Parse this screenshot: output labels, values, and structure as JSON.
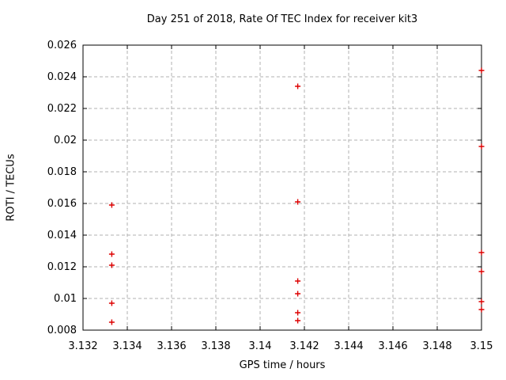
{
  "chart_data": {
    "type": "scatter",
    "title": "Day 251 of 2018, Rate Of TEC Index for receiver kit3",
    "xlabel": "GPS time / hours",
    "ylabel": "ROTI / TECUs",
    "xlim": [
      3.132,
      3.15
    ],
    "ylim": [
      0.008,
      0.026
    ],
    "x_ticks": {
      "values": [
        3.132,
        3.134,
        3.136,
        3.138,
        3.14,
        3.142,
        3.144,
        3.146,
        3.148,
        3.15
      ],
      "labels": [
        "3.132",
        "3.134",
        "3.136",
        "3.138",
        "3.14",
        "3.142",
        "3.144",
        "3.146",
        "3.148",
        "3.15"
      ]
    },
    "y_ticks": {
      "values": [
        0.008,
        0.01,
        0.012,
        0.014,
        0.016,
        0.018,
        0.02,
        0.022,
        0.024,
        0.026
      ],
      "labels": [
        "0.008",
        "0.01",
        "0.012",
        "0.014",
        "0.016",
        "0.018",
        "0.02",
        "0.022",
        "0.024",
        "0.026"
      ]
    },
    "grid": true,
    "legend_position": "none",
    "marker": "plus",
    "marker_color": "#dd0000",
    "grid_color": "#b0b0b0",
    "axis_color": "#000000",
    "series": [
      {
        "points": [
          [
            3.1333,
            0.0159
          ],
          [
            3.1333,
            0.0128
          ],
          [
            3.1333,
            0.0121
          ],
          [
            3.1333,
            0.0097
          ],
          [
            3.1333,
            0.0085
          ],
          [
            3.1417,
            0.0234
          ],
          [
            3.1417,
            0.0161
          ],
          [
            3.1417,
            0.0111
          ],
          [
            3.1417,
            0.0103
          ],
          [
            3.1417,
            0.0091
          ],
          [
            3.1417,
            0.0086
          ],
          [
            3.15,
            0.0244
          ],
          [
            3.15,
            0.0196
          ],
          [
            3.15,
            0.0129
          ],
          [
            3.15,
            0.0117
          ],
          [
            3.15,
            0.0098
          ],
          [
            3.15,
            0.0093
          ]
        ]
      }
    ]
  }
}
